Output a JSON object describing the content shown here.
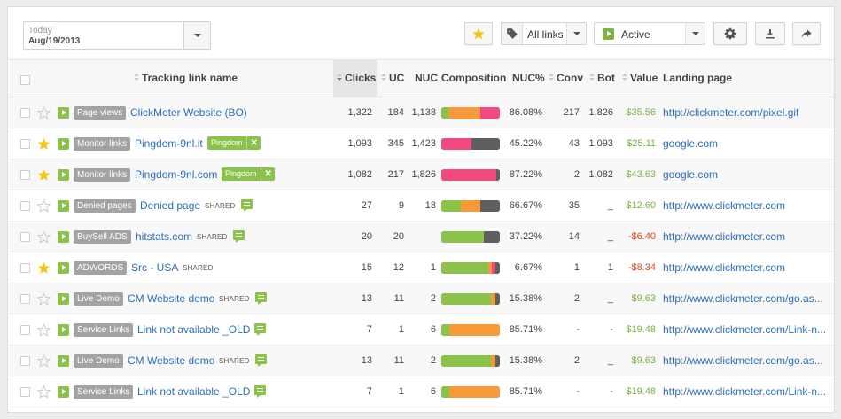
{
  "toolbar": {
    "date_label": "Today",
    "date_value": "Aug/19/2013",
    "links_filter": "All links",
    "status_filter": "Active",
    "icons": [
      "star-icon",
      "tag-icon",
      "gear-icon",
      "download-icon",
      "share-icon"
    ]
  },
  "colors": {
    "accent_green": "#8bc34a",
    "link_blue": "#2a6ebb",
    "negative_red": "#e8431b",
    "star_yellow": "#f5c518",
    "bar_green": "#8bc34a",
    "bar_orange": "#f79a3a",
    "bar_pink": "#f24a7e",
    "bar_gray": "#5f5f5f"
  },
  "table": {
    "columns": {
      "name": "Tracking link name",
      "clicks": "Clicks",
      "uc": "UC",
      "nuc": "NUC",
      "composition": "Composition",
      "nucp": "NUC%",
      "conv": "Conv",
      "bot": "Bot",
      "value": "Value",
      "landing": "Landing page"
    },
    "rows": [
      {
        "starred": false,
        "group": "Page views",
        "name": "ClickMeter Website (BO)",
        "shared": "",
        "note": false,
        "tag": "",
        "clicks": "1,322",
        "uc": "184",
        "nuc": "1,138",
        "comp": [
          12,
          54,
          34,
          0
        ],
        "nucp": "86.08%",
        "conv": "217",
        "bot": "1,826",
        "value": "$35.56",
        "neg": false,
        "landing": "http://clickmeter.com/pixel.gif"
      },
      {
        "starred": true,
        "group": "Monitor links",
        "name": "Pingdom-9nl.it",
        "shared": "",
        "note": false,
        "tag": "Pingdom",
        "clicks": "1,093",
        "uc": "345",
        "nuc": "1,423",
        "comp": [
          0,
          0,
          52,
          48
        ],
        "nucp": "45.22%",
        "conv": "43",
        "bot": "1,093",
        "value": "$25.11",
        "neg": false,
        "landing": "google.com"
      },
      {
        "starred": true,
        "group": "Monitor links",
        "name": "Pingdom-9nl.com",
        "shared": "",
        "note": false,
        "tag": "Pingdom",
        "clicks": "1,082",
        "uc": "217",
        "nuc": "1,826",
        "comp": [
          0,
          0,
          94,
          6
        ],
        "nucp": "87.22%",
        "conv": "2",
        "bot": "1,082",
        "value": "$43.63",
        "neg": false,
        "landing": "google.com"
      },
      {
        "starred": false,
        "group": "Denied pages",
        "name": "Denied page",
        "shared": "SHARED",
        "note": true,
        "tag": "",
        "clicks": "27",
        "uc": "9",
        "nuc": "18",
        "comp": [
          33,
          33,
          0,
          34
        ],
        "nucp": "66.67%",
        "conv": "35",
        "bot": "_",
        "value": "$12.60",
        "neg": false,
        "landing": "http://www.clickmeter.com"
      },
      {
        "starred": false,
        "group": "BuySell ADS",
        "name": "hitstats.com",
        "shared": "SHARED",
        "note": true,
        "tag": "",
        "clicks": "20",
        "uc": "20",
        "nuc": "",
        "comp": [
          72,
          0,
          0,
          28
        ],
        "nucp": "37.22%",
        "conv": "14",
        "bot": "_",
        "value": "-$6.40",
        "neg": true,
        "landing": "http://www.clickmeter.com"
      },
      {
        "starred": true,
        "group": "ADWORDS",
        "name": "Src - USA",
        "shared": "SHARED",
        "note": false,
        "tag": "",
        "clicks": "15",
        "uc": "12",
        "nuc": "1",
        "comp": [
          80,
          7,
          6,
          7
        ],
        "nucp": "6.67%",
        "conv": "1",
        "bot": "1",
        "value": "-$8.34",
        "neg": true,
        "landing": "http://www.clickmeter.com"
      },
      {
        "starred": false,
        "group": "Live Demo",
        "name": "CM Website demo",
        "shared": "SHARED",
        "note": true,
        "tag": "",
        "clicks": "13",
        "uc": "11",
        "nuc": "2",
        "comp": [
          85,
          7,
          0,
          8
        ],
        "nucp": "15.38%",
        "conv": "2",
        "bot": "_",
        "value": "$9.63",
        "neg": false,
        "landing": "http://www.clickmeter.com/go.as..."
      },
      {
        "starred": false,
        "group": "Service Links",
        "name": "Link not available _OLD",
        "shared": "",
        "note": true,
        "tag": "",
        "clicks": "7",
        "uc": "1",
        "nuc": "6",
        "comp": [
          14,
          86,
          0,
          0
        ],
        "nucp": "85.71%",
        "conv": "-",
        "bot": "-",
        "value": "$19.48",
        "neg": false,
        "landing": "http://www.clickmeter.com/Link-n..."
      },
      {
        "starred": false,
        "group": "Live Demo",
        "name": "CM Website demo",
        "shared": "SHARED",
        "note": true,
        "tag": "",
        "clicks": "13",
        "uc": "11",
        "nuc": "2",
        "comp": [
          85,
          7,
          0,
          8
        ],
        "nucp": "15.38%",
        "conv": "2",
        "bot": "_",
        "value": "$9.63",
        "neg": false,
        "landing": "http://www.clickmeter.com/go.as..."
      },
      {
        "starred": false,
        "group": "Service Links",
        "name": "Link not available _OLD",
        "shared": "",
        "note": true,
        "tag": "",
        "clicks": "7",
        "uc": "1",
        "nuc": "6",
        "comp": [
          14,
          86,
          0,
          0
        ],
        "nucp": "85.71%",
        "conv": "-",
        "bot": "-",
        "value": "$19.48",
        "neg": false,
        "landing": "http://www.clickmeter.com/Link-n..."
      }
    ]
  }
}
